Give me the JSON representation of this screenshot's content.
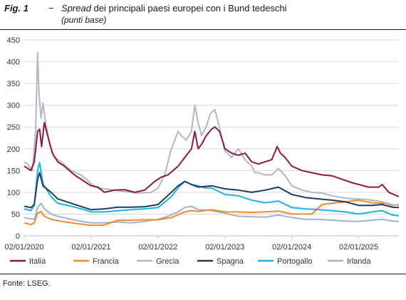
{
  "figure": {
    "number": "Fig. 1",
    "dash": "−",
    "title_italic": "Spread",
    "title_rest": " dei principali paesi europei con i Bund tedeschi",
    "subtitle": "(punti base)"
  },
  "source": "Fonte: LSEG.",
  "chart_data": {
    "type": "line",
    "title": "Spread dei principali paesi europei con i Bund tedeschi",
    "ylabel": "(punti base)",
    "ylim": [
      0,
      450
    ],
    "yticks": [
      0,
      50,
      100,
      150,
      200,
      250,
      300,
      350,
      400,
      450
    ],
    "xlim": [
      2020.0,
      2025.6
    ],
    "xticks": [
      {
        "value": 2020.0,
        "label": "02/01/2020"
      },
      {
        "value": 2021.0,
        "label": "02/01/2021"
      },
      {
        "value": 2022.0,
        "label": "02/01/2022"
      },
      {
        "value": 2023.0,
        "label": "02/01/2023"
      },
      {
        "value": 2024.0,
        "label": "02/01/2024"
      },
      {
        "value": 2025.0,
        "label": "02/01/2025"
      }
    ],
    "grid": "horizontal",
    "legend_position": "bottom",
    "series": [
      {
        "name": "Irlanda",
        "color": "#9db3d3",
        "points": [
          [
            2020.0,
            42
          ],
          [
            2020.15,
            38
          ],
          [
            2020.2,
            65
          ],
          [
            2020.25,
            75
          ],
          [
            2020.3,
            62
          ],
          [
            2020.4,
            50
          ],
          [
            2020.5,
            45
          ],
          [
            2020.7,
            38
          ],
          [
            2020.9,
            32
          ],
          [
            2021.0,
            30
          ],
          [
            2021.2,
            30
          ],
          [
            2021.4,
            32
          ],
          [
            2021.6,
            30
          ],
          [
            2021.8,
            33
          ],
          [
            2022.0,
            38
          ],
          [
            2022.15,
            45
          ],
          [
            2022.3,
            55
          ],
          [
            2022.4,
            65
          ],
          [
            2022.5,
            68
          ],
          [
            2022.6,
            60
          ],
          [
            2022.8,
            58
          ],
          [
            2023.0,
            52
          ],
          [
            2023.2,
            45
          ],
          [
            2023.4,
            44
          ],
          [
            2023.6,
            43
          ],
          [
            2023.8,
            48
          ],
          [
            2024.0,
            42
          ],
          [
            2024.2,
            38
          ],
          [
            2024.4,
            38
          ],
          [
            2024.6,
            36
          ],
          [
            2024.8,
            34
          ],
          [
            2025.0,
            33
          ],
          [
            2025.2,
            36
          ],
          [
            2025.35,
            38
          ],
          [
            2025.5,
            34
          ],
          [
            2025.6,
            33
          ]
        ]
      },
      {
        "name": "Francia",
        "color": "#f08a2e",
        "points": [
          [
            2020.0,
            30
          ],
          [
            2020.1,
            26
          ],
          [
            2020.15,
            30
          ],
          [
            2020.2,
            52
          ],
          [
            2020.25,
            56
          ],
          [
            2020.3,
            45
          ],
          [
            2020.4,
            38
          ],
          [
            2020.6,
            32
          ],
          [
            2020.8,
            28
          ],
          [
            2021.0,
            24
          ],
          [
            2021.2,
            25
          ],
          [
            2021.4,
            36
          ],
          [
            2021.6,
            36
          ],
          [
            2021.8,
            37
          ],
          [
            2022.0,
            37
          ],
          [
            2022.2,
            42
          ],
          [
            2022.4,
            55
          ],
          [
            2022.5,
            58
          ],
          [
            2022.6,
            56
          ],
          [
            2022.8,
            60
          ],
          [
            2023.0,
            55
          ],
          [
            2023.2,
            55
          ],
          [
            2023.4,
            54
          ],
          [
            2023.6,
            55
          ],
          [
            2023.8,
            57
          ],
          [
            2024.0,
            50
          ],
          [
            2024.3,
            50
          ],
          [
            2024.45,
            72
          ],
          [
            2024.6,
            75
          ],
          [
            2024.8,
            78
          ],
          [
            2025.0,
            82
          ],
          [
            2025.2,
            76
          ],
          [
            2025.4,
            75
          ],
          [
            2025.5,
            70
          ],
          [
            2025.6,
            72
          ]
        ]
      },
      {
        "name": "Portogallo",
        "color": "#1fb2e6",
        "points": [
          [
            2020.0,
            62
          ],
          [
            2020.1,
            58
          ],
          [
            2020.15,
            70
          ],
          [
            2020.2,
            150
          ],
          [
            2020.23,
            168
          ],
          [
            2020.28,
            120
          ],
          [
            2020.4,
            90
          ],
          [
            2020.5,
            75
          ],
          [
            2020.7,
            68
          ],
          [
            2020.9,
            60
          ],
          [
            2021.0,
            55
          ],
          [
            2021.2,
            55
          ],
          [
            2021.4,
            58
          ],
          [
            2021.6,
            60
          ],
          [
            2021.8,
            62
          ],
          [
            2022.0,
            65
          ],
          [
            2022.2,
            90
          ],
          [
            2022.3,
            110
          ],
          [
            2022.4,
            125
          ],
          [
            2022.5,
            118
          ],
          [
            2022.6,
            115
          ],
          [
            2022.7,
            110
          ],
          [
            2022.8,
            110
          ],
          [
            2023.0,
            95
          ],
          [
            2023.2,
            92
          ],
          [
            2023.4,
            82
          ],
          [
            2023.6,
            76
          ],
          [
            2023.8,
            80
          ],
          [
            2024.0,
            65
          ],
          [
            2024.2,
            62
          ],
          [
            2024.4,
            60
          ],
          [
            2024.6,
            58
          ],
          [
            2024.8,
            55
          ],
          [
            2025.0,
            50
          ],
          [
            2025.2,
            55
          ],
          [
            2025.35,
            58
          ],
          [
            2025.5,
            48
          ],
          [
            2025.6,
            46
          ]
        ]
      },
      {
        "name": "Spagna",
        "color": "#1f3b5e",
        "points": [
          [
            2020.0,
            68
          ],
          [
            2020.1,
            65
          ],
          [
            2020.15,
            72
          ],
          [
            2020.2,
            130
          ],
          [
            2020.23,
            145
          ],
          [
            2020.28,
            115
          ],
          [
            2020.4,
            100
          ],
          [
            2020.5,
            85
          ],
          [
            2020.7,
            75
          ],
          [
            2020.9,
            65
          ],
          [
            2021.0,
            60
          ],
          [
            2021.2,
            62
          ],
          [
            2021.4,
            66
          ],
          [
            2021.6,
            66
          ],
          [
            2021.8,
            67
          ],
          [
            2022.0,
            72
          ],
          [
            2022.2,
            100
          ],
          [
            2022.3,
            115
          ],
          [
            2022.4,
            125
          ],
          [
            2022.5,
            118
          ],
          [
            2022.6,
            112
          ],
          [
            2022.8,
            115
          ],
          [
            2023.0,
            108
          ],
          [
            2023.2,
            105
          ],
          [
            2023.4,
            100
          ],
          [
            2023.6,
            105
          ],
          [
            2023.8,
            112
          ],
          [
            2024.0,
            95
          ],
          [
            2024.2,
            88
          ],
          [
            2024.4,
            85
          ],
          [
            2024.6,
            82
          ],
          [
            2024.8,
            78
          ],
          [
            2025.0,
            70
          ],
          [
            2025.2,
            70
          ],
          [
            2025.35,
            72
          ],
          [
            2025.5,
            66
          ],
          [
            2025.6,
            65
          ]
        ]
      },
      {
        "name": "Grecia",
        "color": "#b3b7c4",
        "points": [
          [
            2020.0,
            170
          ],
          [
            2020.05,
            165
          ],
          [
            2020.12,
            150
          ],
          [
            2020.17,
            240
          ],
          [
            2020.2,
            420
          ],
          [
            2020.22,
            330
          ],
          [
            2020.25,
            270
          ],
          [
            2020.28,
            305
          ],
          [
            2020.32,
            260
          ],
          [
            2020.38,
            210
          ],
          [
            2020.45,
            180
          ],
          [
            2020.55,
            170
          ],
          [
            2020.7,
            150
          ],
          [
            2020.85,
            140
          ],
          [
            2021.0,
            120
          ],
          [
            2021.1,
            110
          ],
          [
            2021.2,
            108
          ],
          [
            2021.35,
            105
          ],
          [
            2021.5,
            102
          ],
          [
            2021.7,
            98
          ],
          [
            2021.9,
            100
          ],
          [
            2022.0,
            110
          ],
          [
            2022.1,
            140
          ],
          [
            2022.2,
            200
          ],
          [
            2022.3,
            240
          ],
          [
            2022.35,
            230
          ],
          [
            2022.42,
            220
          ],
          [
            2022.5,
            240
          ],
          [
            2022.55,
            300
          ],
          [
            2022.6,
            260
          ],
          [
            2022.65,
            230
          ],
          [
            2022.72,
            250
          ],
          [
            2022.78,
            280
          ],
          [
            2022.85,
            290
          ],
          [
            2022.9,
            260
          ],
          [
            2023.0,
            195
          ],
          [
            2023.1,
            180
          ],
          [
            2023.2,
            200
          ],
          [
            2023.3,
            175
          ],
          [
            2023.4,
            160
          ],
          [
            2023.45,
            145
          ],
          [
            2023.5,
            145
          ],
          [
            2023.6,
            140
          ],
          [
            2023.7,
            140
          ],
          [
            2023.8,
            155
          ],
          [
            2023.9,
            138
          ],
          [
            2024.0,
            115
          ],
          [
            2024.15,
            105
          ],
          [
            2024.3,
            100
          ],
          [
            2024.45,
            98
          ],
          [
            2024.6,
            92
          ],
          [
            2024.75,
            88
          ],
          [
            2024.9,
            85
          ],
          [
            2025.0,
            85
          ],
          [
            2025.2,
            82
          ],
          [
            2025.35,
            78
          ],
          [
            2025.5,
            72
          ],
          [
            2025.6,
            70
          ]
        ]
      },
      {
        "name": "Italia",
        "color": "#8c1a40",
        "points": [
          [
            2020.0,
            160
          ],
          [
            2020.05,
            155
          ],
          [
            2020.1,
            150
          ],
          [
            2020.15,
            170
          ],
          [
            2020.2,
            240
          ],
          [
            2020.23,
            245
          ],
          [
            2020.26,
            205
          ],
          [
            2020.3,
            260
          ],
          [
            2020.35,
            230
          ],
          [
            2020.42,
            190
          ],
          [
            2020.5,
            170
          ],
          [
            2020.6,
            160
          ],
          [
            2020.75,
            140
          ],
          [
            2020.9,
            125
          ],
          [
            2021.0,
            115
          ],
          [
            2021.1,
            112
          ],
          [
            2021.2,
            100
          ],
          [
            2021.35,
            105
          ],
          [
            2021.5,
            106
          ],
          [
            2021.65,
            100
          ],
          [
            2021.8,
            105
          ],
          [
            2021.95,
            125
          ],
          [
            2022.05,
            135
          ],
          [
            2022.15,
            140
          ],
          [
            2022.3,
            160
          ],
          [
            2022.4,
            180
          ],
          [
            2022.5,
            200
          ],
          [
            2022.55,
            240
          ],
          [
            2022.6,
            200
          ],
          [
            2022.65,
            210
          ],
          [
            2022.72,
            230
          ],
          [
            2022.8,
            245
          ],
          [
            2022.85,
            250
          ],
          [
            2022.92,
            240
          ],
          [
            2023.0,
            200
          ],
          [
            2023.1,
            190
          ],
          [
            2023.2,
            185
          ],
          [
            2023.3,
            190
          ],
          [
            2023.4,
            170
          ],
          [
            2023.5,
            165
          ],
          [
            2023.6,
            170
          ],
          [
            2023.7,
            175
          ],
          [
            2023.78,
            205
          ],
          [
            2023.83,
            190
          ],
          [
            2023.9,
            180
          ],
          [
            2024.0,
            160
          ],
          [
            2024.15,
            150
          ],
          [
            2024.3,
            145
          ],
          [
            2024.45,
            140
          ],
          [
            2024.6,
            138
          ],
          [
            2024.75,
            130
          ],
          [
            2024.9,
            122
          ],
          [
            2025.0,
            118
          ],
          [
            2025.15,
            112
          ],
          [
            2025.3,
            112
          ],
          [
            2025.35,
            118
          ],
          [
            2025.45,
            100
          ],
          [
            2025.6,
            90
          ]
        ]
      }
    ],
    "legend": [
      {
        "name": "Italia",
        "color": "#8c1a40"
      },
      {
        "name": "Francia",
        "color": "#f08a2e"
      },
      {
        "name": "Grecia",
        "color": "#b3b7c4"
      },
      {
        "name": "Spagna",
        "color": "#1f3b5e"
      },
      {
        "name": "Portogallo",
        "color": "#1fb2e6"
      },
      {
        "name": "Irlanda",
        "color": "#9db3d3"
      }
    ]
  }
}
